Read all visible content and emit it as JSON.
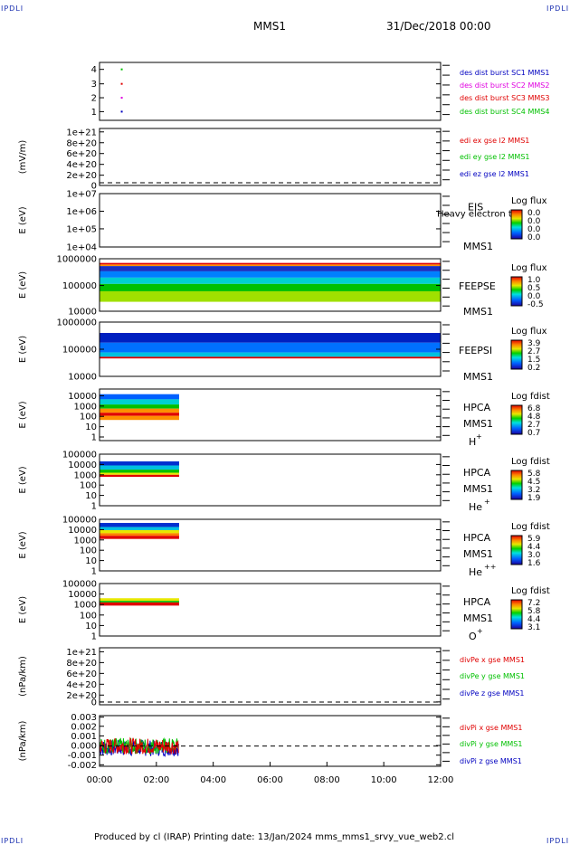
{
  "corner_label": "IPDLI",
  "header": {
    "spacecraft": "MMS1",
    "date": "31/Dec/2018 00:00"
  },
  "footer": "Produced by cl (IRAP)   Printing date: 13/Jan/2024   mms_mms1_srvy_vue_web2.cl",
  "colors": {
    "red": "#e00000",
    "magenta": "#e000e0",
    "green": "#00c000",
    "blue": "#0000c0"
  },
  "chart_data": {
    "type": "stacked-timeseries",
    "x_ticks": [
      "00:00",
      "02:00",
      "04:00",
      "06:00",
      "08:00",
      "10:00",
      "12:00"
    ],
    "xlim_hours": [
      0,
      12
    ],
    "panels": [
      {
        "id": "p1",
        "kind": "line",
        "yticks": [
          "4",
          "3",
          "2",
          "1"
        ],
        "legend": [
          {
            "text": "des dist burst SC1 MMS1",
            "color": "blue"
          },
          {
            "text": "des dist burst SC2 MMS2",
            "color": "magenta"
          },
          {
            "text": "des dist burst SC3 MMS3",
            "color": "red"
          },
          {
            "text": "des dist burst SC4 MMS4",
            "color": "green"
          }
        ],
        "series": [
          {
            "y": 4,
            "t": 0.75,
            "color": "green"
          },
          {
            "y": 3,
            "t": 0.75,
            "color": "red"
          },
          {
            "y": 2,
            "t": 0.75,
            "color": "magenta"
          },
          {
            "y": 1,
            "t": 0.75,
            "color": "blue"
          }
        ]
      },
      {
        "id": "p2",
        "kind": "line",
        "ylabel": "(mV/m)",
        "yticks": [
          "1e+21",
          "8e+20",
          "6e+20",
          "4e+20",
          "2e+20",
          "0"
        ],
        "legend": [
          {
            "text": "edi ex gse l2 MMS1",
            "color": "red"
          },
          {
            "text": "edi ey gse l2 MMS1",
            "color": "green"
          },
          {
            "text": "edi ez gse l2 MMS1",
            "color": "blue"
          }
        ]
      },
      {
        "id": "p3",
        "kind": "spectrogram",
        "ylabel": "E (eV)",
        "yticks": [
          "1e+07",
          "1e+06",
          "1e+05",
          "1e+04"
        ],
        "instrument": "EIS",
        "subtitle": "Heavy electron tof",
        "mms": "MMS1",
        "cbar": {
          "title": "Log flux",
          "ticks": [
            "0.0",
            "0.0",
            "0.0",
            "0.0"
          ]
        }
      },
      {
        "id": "p4",
        "kind": "spectrogram",
        "ylabel": "E (eV)",
        "yticks": [
          "1000000",
          "100000",
          "10000"
        ],
        "instrument": "FEEPSE",
        "mms": "MMS1",
        "cbar": {
          "title": "Log flux",
          "ticks": [
            "1.0",
            "0.5",
            "0.0",
            "-0.5"
          ]
        }
      },
      {
        "id": "p5",
        "kind": "spectrogram",
        "ylabel": "E (eV)",
        "yticks": [
          "1000000",
          "100000",
          "10000"
        ],
        "instrument": "FEEPSI",
        "mms": "MMS1",
        "cbar": {
          "title": "Log flux",
          "ticks": [
            "3.9",
            "2.7",
            "1.5",
            "0.2"
          ]
        }
      },
      {
        "id": "p6",
        "kind": "spectrogram",
        "ylabel": "E (eV)",
        "yticks": [
          "10000",
          "1000",
          "100",
          "10",
          "1"
        ],
        "instrument": "HPCA",
        "mms": "MMS1",
        "species": "H",
        "charge": "+",
        "cbar": {
          "title": "Log fdist",
          "ticks": [
            "6.8",
            "4.8",
            "2.7",
            "0.7"
          ]
        }
      },
      {
        "id": "p7",
        "kind": "spectrogram",
        "ylabel": "E (eV)",
        "yticks": [
          "100000",
          "10000",
          "1000",
          "100",
          "10",
          "1"
        ],
        "instrument": "HPCA",
        "mms": "MMS1",
        "species": "He",
        "charge": "+",
        "cbar": {
          "title": "Log fdist",
          "ticks": [
            "5.8",
            "4.5",
            "3.2",
            "1.9"
          ]
        }
      },
      {
        "id": "p8",
        "kind": "spectrogram",
        "ylabel": "E (eV)",
        "yticks": [
          "100000",
          "10000",
          "1000",
          "100",
          "10",
          "1"
        ],
        "instrument": "HPCA",
        "mms": "MMS1",
        "species": "He",
        "charge": "++",
        "cbar": {
          "title": "Log fdist",
          "ticks": [
            "5.9",
            "4.4",
            "3.0",
            "1.6"
          ]
        }
      },
      {
        "id": "p9",
        "kind": "spectrogram",
        "ylabel": "E (eV)",
        "yticks": [
          "100000",
          "10000",
          "1000",
          "100",
          "10",
          "1"
        ],
        "instrument": "HPCA",
        "mms": "MMS1",
        "species": "O",
        "charge": "+",
        "cbar": {
          "title": "Log fdist",
          "ticks": [
            "7.2",
            "5.8",
            "4.4",
            "3.1"
          ]
        }
      },
      {
        "id": "p10",
        "kind": "line",
        "ylabel": "(nPa/km)",
        "yticks": [
          "1e+21",
          "8e+20",
          "6e+20",
          "4e+20",
          "2e+20",
          "0"
        ],
        "legend": [
          {
            "text": "divPe x gse MMS1",
            "color": "red"
          },
          {
            "text": "divPe y gse MMS1",
            "color": "green"
          },
          {
            "text": "divPe z gse MMS1",
            "color": "blue"
          }
        ]
      },
      {
        "id": "p11",
        "kind": "line",
        "ylabel": "(nPa/km)",
        "yticks": [
          "0.003",
          "0.002",
          "0.001",
          "0.000",
          "-0.001",
          "-0.002"
        ],
        "ylim": [
          -0.002,
          0.003
        ],
        "data_span_hours": [
          0,
          2.8
        ],
        "legend": [
          {
            "text": "divPi x gse MMS1",
            "color": "red"
          },
          {
            "text": "divPi y gse MMS1",
            "color": "green"
          },
          {
            "text": "divPi z gse MMS1",
            "color": "blue"
          }
        ]
      }
    ]
  }
}
